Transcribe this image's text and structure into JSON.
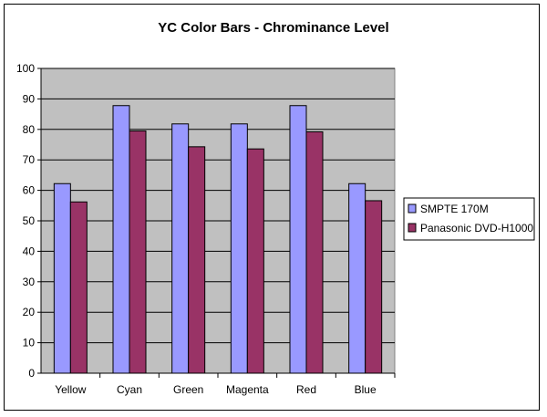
{
  "chart_data": {
    "type": "bar",
    "title": "YC Color Bars - Chrominance Level",
    "xlabel": "",
    "ylabel": "",
    "categories": [
      "Yellow",
      "Cyan",
      "Green",
      "Magenta",
      "Red",
      "Blue"
    ],
    "series": [
      {
        "name": "SMPTE 170M",
        "values": [
          62.2,
          87.8,
          81.8,
          81.8,
          87.8,
          62.2
        ],
        "color": "#9999ff"
      },
      {
        "name": "Panasonic DVD-H1000",
        "values": [
          56.2,
          79.5,
          74.3,
          73.6,
          79.2,
          56.6
        ],
        "color": "#993366"
      }
    ],
    "ylim": [
      0,
      100
    ],
    "yticks": [
      0,
      10,
      20,
      30,
      40,
      50,
      60,
      70,
      80,
      90,
      100
    ],
    "grid": true,
    "plot_background": "#c0c0c0",
    "legend_position": "right"
  }
}
